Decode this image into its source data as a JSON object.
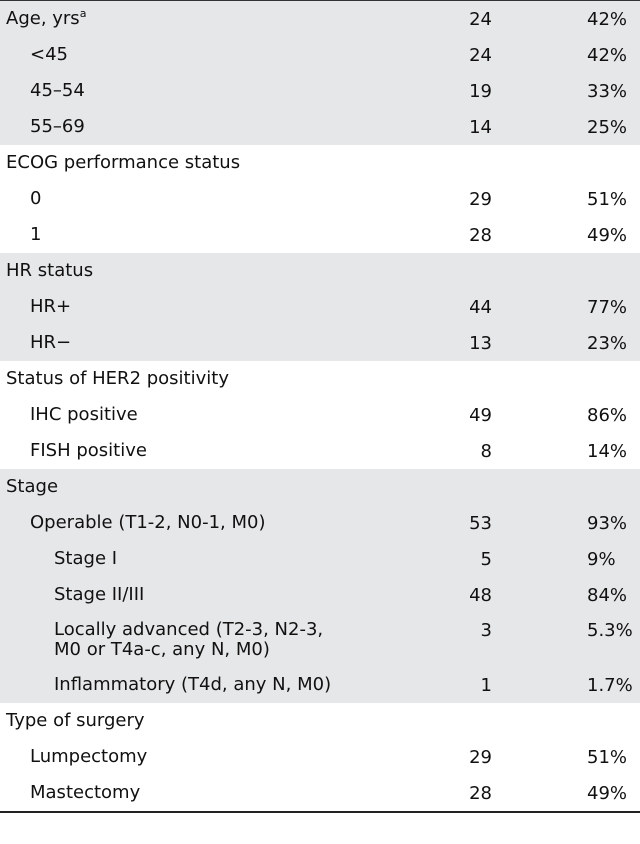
{
  "table": {
    "rows": [
      {
        "label": "Age, yrs",
        "sup": "a",
        "n": "24",
        "pct": "42%",
        "indent": 0,
        "shaded": true
      },
      {
        "label": "<45",
        "n": "24",
        "pct": "42%",
        "indent": 1,
        "shaded": true
      },
      {
        "label": "45–54",
        "n": "19",
        "pct": "33%",
        "indent": 1,
        "shaded": true
      },
      {
        "label": "55–69",
        "n": "14",
        "pct": "25%",
        "indent": 1,
        "shaded": true
      },
      {
        "label": "ECOG performance status",
        "n": "",
        "pct": "",
        "indent": 0,
        "shaded": false
      },
      {
        "label": "0",
        "n": "29",
        "pct": "51%",
        "indent": 1,
        "shaded": false
      },
      {
        "label": "1",
        "n": "28",
        "pct": "49%",
        "indent": 1,
        "shaded": false
      },
      {
        "label": "HR status",
        "n": "",
        "pct": "",
        "indent": 0,
        "shaded": true
      },
      {
        "label": "HR+",
        "n": "44",
        "pct": "77%",
        "indent": 1,
        "shaded": true
      },
      {
        "label": "HR−",
        "n": "13",
        "pct": "23%",
        "indent": 1,
        "shaded": true
      },
      {
        "label": "Status of HER2 positivity",
        "n": "",
        "pct": "",
        "indent": 0,
        "shaded": false
      },
      {
        "label": "IHC positive",
        "n": "49",
        "pct": "86%",
        "indent": 1,
        "shaded": false
      },
      {
        "label": "FISH positive",
        "n": "8",
        "pct": "14%",
        "indent": 1,
        "shaded": false
      },
      {
        "label": "Stage",
        "n": "",
        "pct": "",
        "indent": 0,
        "shaded": true
      },
      {
        "label": "Operable (T1-2, N0-1, M0)",
        "n": "53",
        "pct": "93%",
        "indent": 1,
        "shaded": true
      },
      {
        "label": "Stage I",
        "n": "5",
        "pct": "9%",
        "indent": 2,
        "shaded": true
      },
      {
        "label": "Stage II/III",
        "n": "48",
        "pct": "84%",
        "indent": 2,
        "shaded": true
      },
      {
        "label": "Locally advanced (T2-3, N2-3,",
        "label2": "M0 or T4a-c, any N, M0)",
        "n": "3",
        "pct": "5.3%",
        "indent": 2,
        "shaded": true
      },
      {
        "label": "Inflammatory (T4d, any N, M0)",
        "n": "1",
        "pct": "1.7%",
        "indent": 2,
        "shaded": true
      },
      {
        "label": "Type of surgery",
        "n": "",
        "pct": "",
        "indent": 0,
        "shaded": false
      },
      {
        "label": "Lumpectomy",
        "n": "29",
        "pct": "51%",
        "indent": 1,
        "shaded": false
      },
      {
        "label": "Mastectomy",
        "n": "28",
        "pct": "49%",
        "indent": 1,
        "shaded": false
      }
    ]
  }
}
